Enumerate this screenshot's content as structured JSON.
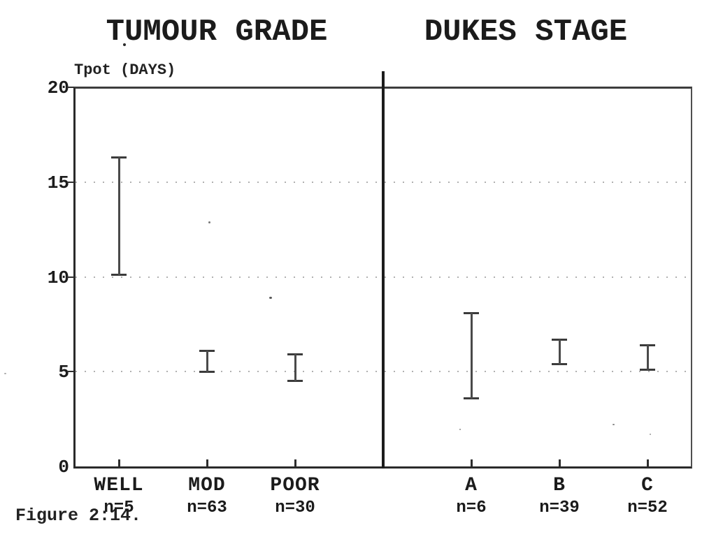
{
  "figure": {
    "caption": "Figure 2:14.",
    "paper_color": "#ffffff",
    "ink_color": "#1e1e1e",
    "gridline_color": "#8f8f8f"
  },
  "axis": {
    "label": "Tpot (DAYS)",
    "tick_labels": [
      "20",
      "15",
      "10",
      "5",
      "0"
    ],
    "tick_values": [
      20,
      15,
      10,
      5,
      0
    ],
    "gridline_values": [
      15,
      10,
      5
    ],
    "ymin": 0,
    "ymax": 20
  },
  "chart_data": [
    {
      "type": "errorbar",
      "title": "TUMOUR GRADE",
      "categories": [
        "WELL",
        "MOD",
        "POOR"
      ],
      "counts": [
        "n=5",
        "n=63",
        "n=30"
      ],
      "intervals": [
        [
          10.1,
          16.3
        ],
        [
          5.0,
          6.1
        ],
        [
          4.5,
          5.9
        ]
      ],
      "ylabel": "Tpot (DAYS)",
      "ylim": [
        0,
        20
      ],
      "yticks": [
        0,
        5,
        10,
        15,
        20
      ],
      "grid": "dotted-horizontal",
      "legend": null
    },
    {
      "type": "errorbar",
      "title": "DUKES STAGE",
      "categories": [
        "A",
        "B",
        "C"
      ],
      "counts": [
        "n=6",
        "n=39",
        "n=52"
      ],
      "intervals": [
        [
          3.6,
          8.1
        ],
        [
          5.4,
          6.7
        ],
        [
          5.1,
          6.4
        ]
      ],
      "ylabel": "Tpot (DAYS)",
      "ylim": [
        0,
        20
      ],
      "yticks": [
        0,
        5,
        10,
        15,
        20
      ],
      "grid": "dotted-horizontal",
      "legend": null
    }
  ]
}
